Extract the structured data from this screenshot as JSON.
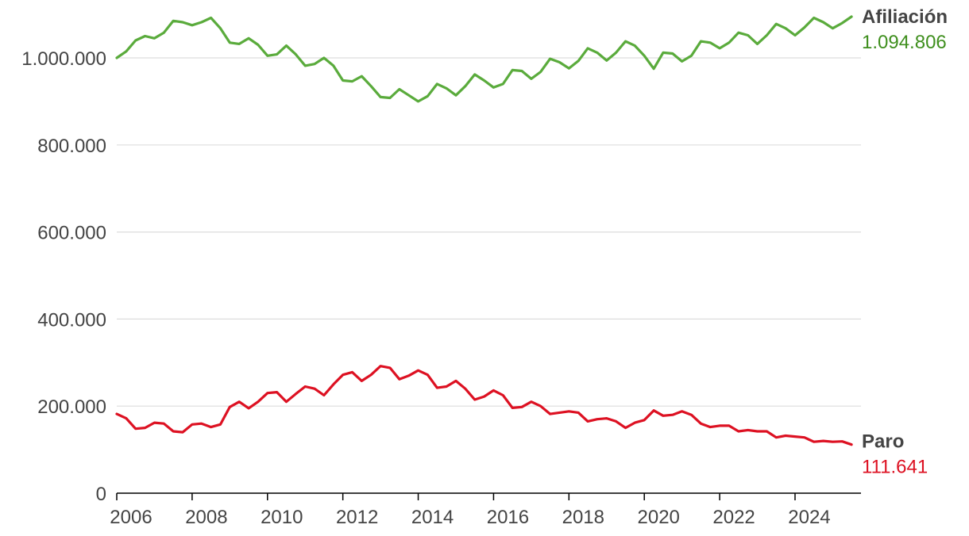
{
  "chart_data": {
    "type": "line",
    "title": "",
    "xlabel": "",
    "ylabel": "",
    "xlim": [
      2006,
      2025.75
    ],
    "ylim": [
      0,
      1000000
    ],
    "x_ticks": [
      {
        "value": 2006,
        "label": "2006"
      },
      {
        "value": 2008,
        "label": "2008"
      },
      {
        "value": 2010,
        "label": "2010"
      },
      {
        "value": 2012,
        "label": "2012"
      },
      {
        "value": 2014,
        "label": "2014"
      },
      {
        "value": 2016,
        "label": "2016"
      },
      {
        "value": 2018,
        "label": "2018"
      },
      {
        "value": 2020,
        "label": "2020"
      },
      {
        "value": 2022,
        "label": "2022"
      },
      {
        "value": 2024,
        "label": "2024"
      }
    ],
    "y_ticks": [
      {
        "value": 0,
        "label": "0"
      },
      {
        "value": 200000,
        "label": "200.000"
      },
      {
        "value": 400000,
        "label": "400.000"
      },
      {
        "value": 600000,
        "label": "600.000"
      },
      {
        "value": 800000,
        "label": "800.000"
      },
      {
        "value": 1000000,
        "label": "1.000.000"
      }
    ],
    "grid": true,
    "series": [
      {
        "name": "Afiliación",
        "end_label": "1.094.806",
        "color": "#5aab3c",
        "label_color": "#3f8f1e",
        "x": [
          2006.0,
          2006.25,
          2006.5,
          2006.75,
          2007.0,
          2007.25,
          2007.5,
          2007.75,
          2008.0,
          2008.25,
          2008.5,
          2008.75,
          2009.0,
          2009.25,
          2009.5,
          2009.75,
          2010.0,
          2010.25,
          2010.5,
          2010.75,
          2011.0,
          2011.25,
          2011.5,
          2011.75,
          2012.0,
          2012.25,
          2012.5,
          2012.75,
          2013.0,
          2013.25,
          2013.5,
          2013.75,
          2014.0,
          2014.25,
          2014.5,
          2014.75,
          2015.0,
          2015.25,
          2015.5,
          2015.75,
          2016.0,
          2016.25,
          2016.5,
          2016.75,
          2017.0,
          2017.25,
          2017.5,
          2017.75,
          2018.0,
          2018.25,
          2018.5,
          2018.75,
          2019.0,
          2019.25,
          2019.5,
          2019.75,
          2020.0,
          2020.25,
          2020.5,
          2020.75,
          2021.0,
          2021.25,
          2021.5,
          2021.75,
          2022.0,
          2022.25,
          2022.5,
          2022.75,
          2023.0,
          2023.25,
          2023.5,
          2023.75,
          2024.0,
          2024.25,
          2024.5,
          2024.75,
          2025.0,
          2025.25,
          2025.5
        ],
        "values": [
          1000000,
          1015000,
          1040000,
          1050000,
          1045000,
          1058000,
          1085000,
          1082000,
          1075000,
          1082000,
          1092000,
          1068000,
          1035000,
          1032000,
          1045000,
          1030000,
          1005000,
          1008000,
          1028000,
          1008000,
          982000,
          986000,
          1000000,
          982000,
          948000,
          946000,
          958000,
          935000,
          910000,
          908000,
          928000,
          914000,
          900000,
          912000,
          940000,
          930000,
          914000,
          935000,
          962000,
          948000,
          932000,
          940000,
          972000,
          970000,
          952000,
          968000,
          998000,
          990000,
          976000,
          993000,
          1022000,
          1012000,
          994000,
          1012000,
          1038000,
          1028000,
          1005000,
          975000,
          1012000,
          1010000,
          992000,
          1005000,
          1038000,
          1035000,
          1022000,
          1035000,
          1058000,
          1052000,
          1032000,
          1052000,
          1078000,
          1068000,
          1052000,
          1070000,
          1092000,
          1082000,
          1068000,
          1080000,
          1094806
        ]
      },
      {
        "name": "Paro",
        "end_label": "111.641",
        "color": "#dd1122",
        "label_color": "#dd1122",
        "x": [
          2006.0,
          2006.25,
          2006.5,
          2006.75,
          2007.0,
          2007.25,
          2007.5,
          2007.75,
          2008.0,
          2008.25,
          2008.5,
          2008.75,
          2009.0,
          2009.25,
          2009.5,
          2009.75,
          2010.0,
          2010.25,
          2010.5,
          2010.75,
          2011.0,
          2011.25,
          2011.5,
          2011.75,
          2012.0,
          2012.25,
          2012.5,
          2012.75,
          2013.0,
          2013.25,
          2013.5,
          2013.75,
          2014.0,
          2014.25,
          2014.5,
          2014.75,
          2015.0,
          2015.25,
          2015.5,
          2015.75,
          2016.0,
          2016.25,
          2016.5,
          2016.75,
          2017.0,
          2017.25,
          2017.5,
          2017.75,
          2018.0,
          2018.25,
          2018.5,
          2018.75,
          2019.0,
          2019.25,
          2019.5,
          2019.75,
          2020.0,
          2020.25,
          2020.5,
          2020.75,
          2021.0,
          2021.25,
          2021.5,
          2021.75,
          2022.0,
          2022.25,
          2022.5,
          2022.75,
          2023.0,
          2023.25,
          2023.5,
          2023.75,
          2024.0,
          2024.25,
          2024.5,
          2024.75,
          2025.0,
          2025.25,
          2025.5
        ],
        "values": [
          182000,
          172000,
          148000,
          150000,
          162000,
          160000,
          142000,
          140000,
          158000,
          160000,
          152000,
          158000,
          198000,
          210000,
          195000,
          210000,
          230000,
          232000,
          210000,
          228000,
          245000,
          240000,
          225000,
          250000,
          272000,
          278000,
          258000,
          272000,
          292000,
          288000,
          262000,
          270000,
          282000,
          272000,
          242000,
          245000,
          258000,
          240000,
          215000,
          222000,
          236000,
          225000,
          196000,
          198000,
          210000,
          200000,
          182000,
          185000,
          188000,
          185000,
          165000,
          170000,
          172000,
          165000,
          150000,
          162000,
          168000,
          190000,
          178000,
          180000,
          188000,
          180000,
          160000,
          152000,
          155000,
          155000,
          142000,
          145000,
          142000,
          142000,
          128000,
          132000,
          130000,
          128000,
          118000,
          120000,
          118000,
          119000,
          111641
        ]
      }
    ]
  }
}
